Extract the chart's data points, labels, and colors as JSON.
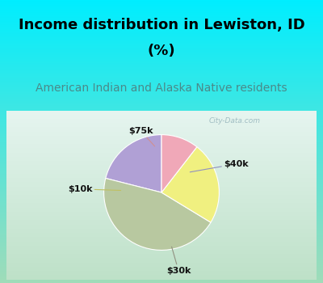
{
  "title_line1": "Income distribution in Lewiston, ID",
  "title_line2": "(%)",
  "subtitle": "American Indian and Alaska Native residents",
  "slices": [
    "$40k",
    "$30k",
    "$10k",
    "$75k"
  ],
  "values": [
    20,
    43,
    22,
    10
  ],
  "colors": [
    "#b0a0d5",
    "#b8c8a0",
    "#f0f080",
    "#f0a8b8"
  ],
  "start_angle": 90,
  "title_color": "#000000",
  "subtitle_color": "#4a8a8a",
  "title_fontsize": 13,
  "subtitle_fontsize": 10,
  "watermark": "City-Data.com",
  "bg_cyan": "#00eeff",
  "chart_area_color_top": "#dff0ec",
  "chart_area_color_bottom": "#c8e8d0"
}
